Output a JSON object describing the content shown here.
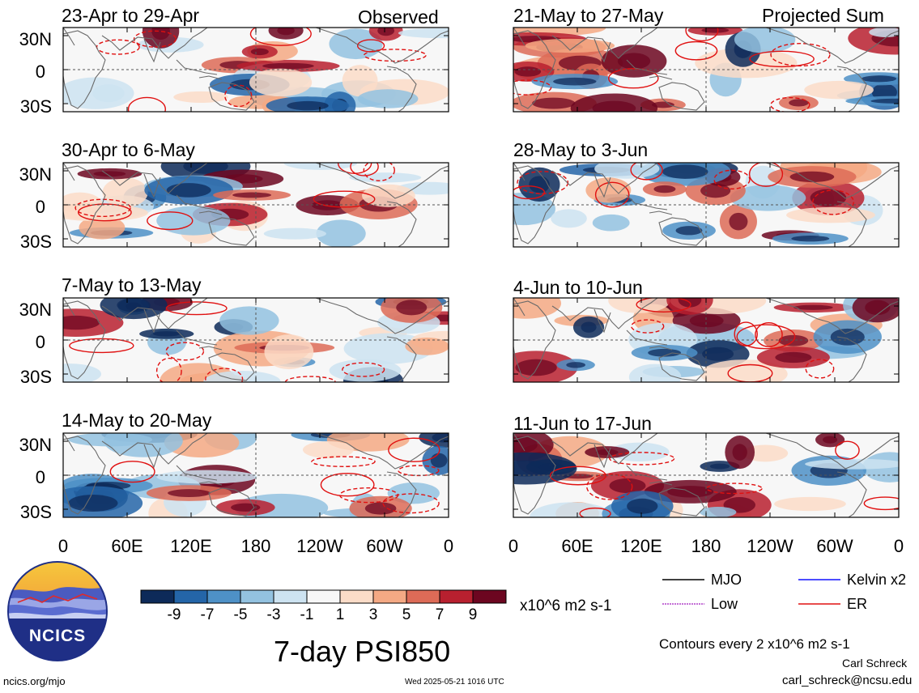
{
  "colors": {
    "levels": [
      "#0d2a59",
      "#2465a8",
      "#4e91c7",
      "#93c2e0",
      "#cde3f1",
      "#f7f7f7",
      "#fbdcc8",
      "#f4a984",
      "#dd6b57",
      "#b8202f",
      "#6c0620"
    ],
    "contour_er": "#e01010",
    "contour_mjo": "#000000",
    "contour_kelvin": "#1010ff",
    "contour_low": "#b040c8",
    "coast": "#6a6a6a"
  },
  "headers": {
    "observed": "Observed",
    "projected": "Projected Sum"
  },
  "panels": [
    {
      "title": "23-Apr to 29-Apr"
    },
    {
      "title": "30-Apr to 6-May"
    },
    {
      "title": "7-May to 13-May"
    },
    {
      "title": "14-May to 20-May"
    },
    {
      "title": "21-May to 27-May"
    },
    {
      "title": "28-May to 3-Jun"
    },
    {
      "title": "4-Jun to 10-Jun"
    },
    {
      "title": "11-Jun to 17-Jun"
    }
  ],
  "lat_labels": [
    "30N",
    "0",
    "30S"
  ],
  "lon_labels": [
    "0",
    "60E",
    "120E",
    "180",
    "120W",
    "60W",
    "0"
  ],
  "colorbar": {
    "ticks": [
      "-9",
      "-7",
      "-5",
      "-3",
      "-1",
      "1",
      "3",
      "5",
      "7",
      "9"
    ],
    "units": "x10^6 m2 s-1"
  },
  "legend": {
    "mjo": "MJO",
    "kelvin": "Kelvin x2",
    "low": "Low",
    "er": "ER",
    "contours": "Contours every 2 x10^6 m2 s-1"
  },
  "main_title": "7-day PSI850",
  "logo_text": "NCICS",
  "footer": {
    "url": "ncics.org/mjo",
    "timestamp": "Wed 2025-05-21 1016 UTC",
    "author": "Carl Schreck",
    "email": "carl_schreck@ncsu.edu"
  }
}
